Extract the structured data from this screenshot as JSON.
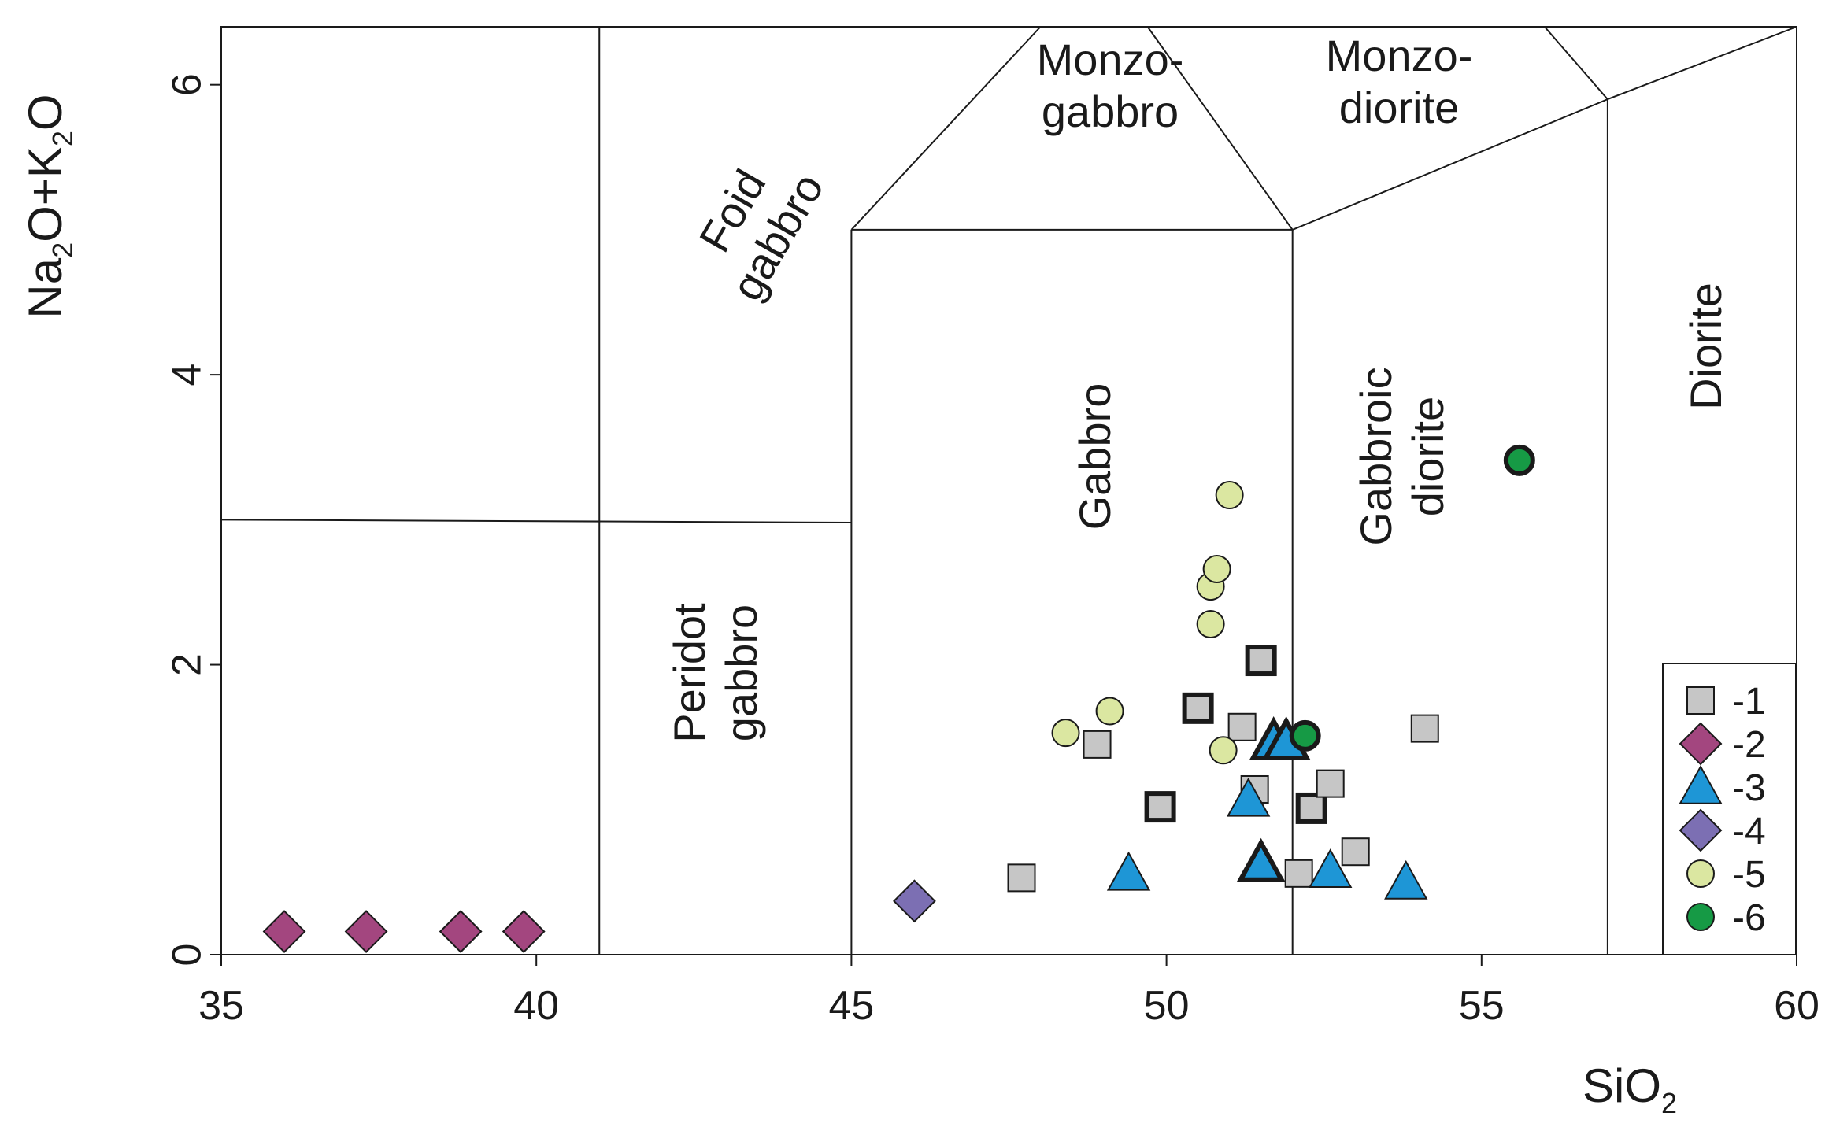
{
  "chart_data": {
    "type": "scatter",
    "title": "",
    "xlabel": "SiO",
    "xlabel_sub": "2",
    "ylabel_parts": [
      "Na",
      "2",
      "O+K",
      "2",
      "O"
    ],
    "xlim": [
      35,
      60
    ],
    "ylim": [
      0,
      6.4
    ],
    "x_ticks": [
      35,
      40,
      45,
      50,
      55,
      60
    ],
    "y_ticks": [
      0,
      2,
      4,
      6
    ],
    "grid": false,
    "legend_position": "bottom-right",
    "field_labels": {
      "foid_gabbro": [
        "Foid",
        "gabbro"
      ],
      "monzo_gabbro": [
        "Monzo-",
        "gabbro"
      ],
      "monzo_diorite": [
        "Monzo-",
        "diorite"
      ],
      "gabbro": [
        "Gabbro"
      ],
      "gabbroic_diorite": [
        "Gabbroic",
        "diorite"
      ],
      "diorite": [
        "Diorite"
      ],
      "peridot_gabbro": [
        "Peridot",
        "gabbro"
      ]
    },
    "series": [
      {
        "name": "-1",
        "marker": "square",
        "color": "#c6c6c6",
        "points": [
          {
            "x": 47.7,
            "y": 0.53,
            "bold": false
          },
          {
            "x": 48.9,
            "y": 1.45,
            "bold": false
          },
          {
            "x": 49.9,
            "y": 1.02,
            "bold": true
          },
          {
            "x": 50.5,
            "y": 1.7,
            "bold": true
          },
          {
            "x": 51.2,
            "y": 1.57,
            "bold": false
          },
          {
            "x": 51.4,
            "y": 1.14,
            "bold": false
          },
          {
            "x": 51.5,
            "y": 2.03,
            "bold": true
          },
          {
            "x": 52.1,
            "y": 0.56,
            "bold": false
          },
          {
            "x": 52.3,
            "y": 1.01,
            "bold": true
          },
          {
            "x": 52.6,
            "y": 1.18,
            "bold": false
          },
          {
            "x": 53.0,
            "y": 0.71,
            "bold": false
          },
          {
            "x": 54.1,
            "y": 1.56,
            "bold": false
          }
        ]
      },
      {
        "name": "-2",
        "marker": "diamond",
        "color": "#a3467f",
        "points": [
          {
            "x": 36.0,
            "y": 0.16,
            "bold": false
          },
          {
            "x": 37.3,
            "y": 0.16,
            "bold": false
          },
          {
            "x": 38.8,
            "y": 0.16,
            "bold": false
          },
          {
            "x": 39.8,
            "y": 0.16,
            "bold": false
          }
        ]
      },
      {
        "name": "-3",
        "marker": "triangle",
        "color": "#1e96d6",
        "points": [
          {
            "x": 49.4,
            "y": 0.56,
            "bold": false
          },
          {
            "x": 51.3,
            "y": 1.07,
            "bold": false
          },
          {
            "x": 51.5,
            "y": 0.63,
            "bold": true
          },
          {
            "x": 51.7,
            "y": 1.47,
            "bold": true
          },
          {
            "x": 51.9,
            "y": 1.47,
            "bold": true
          },
          {
            "x": 52.6,
            "y": 0.58,
            "bold": false
          },
          {
            "x": 53.8,
            "y": 0.5,
            "bold": false
          }
        ]
      },
      {
        "name": "-4",
        "marker": "diamond",
        "color": "#7c6fb3",
        "points": [
          {
            "x": 46.0,
            "y": 0.37,
            "bold": false
          }
        ]
      },
      {
        "name": "-5",
        "marker": "circle",
        "color": "#dbe7a1",
        "points": [
          {
            "x": 48.4,
            "y": 1.53,
            "bold": false
          },
          {
            "x": 49.1,
            "y": 1.68,
            "bold": false
          },
          {
            "x": 50.7,
            "y": 2.28,
            "bold": false
          },
          {
            "x": 50.7,
            "y": 2.54,
            "bold": false
          },
          {
            "x": 50.8,
            "y": 2.66,
            "bold": false
          },
          {
            "x": 50.9,
            "y": 1.41,
            "bold": false
          },
          {
            "x": 51.0,
            "y": 3.17,
            "bold": false
          }
        ]
      },
      {
        "name": "-6",
        "marker": "circle",
        "color": "#169a45",
        "points": [
          {
            "x": 52.2,
            "y": 1.51,
            "bold": true
          },
          {
            "x": 55.6,
            "y": 3.41,
            "bold": true
          }
        ]
      }
    ]
  }
}
